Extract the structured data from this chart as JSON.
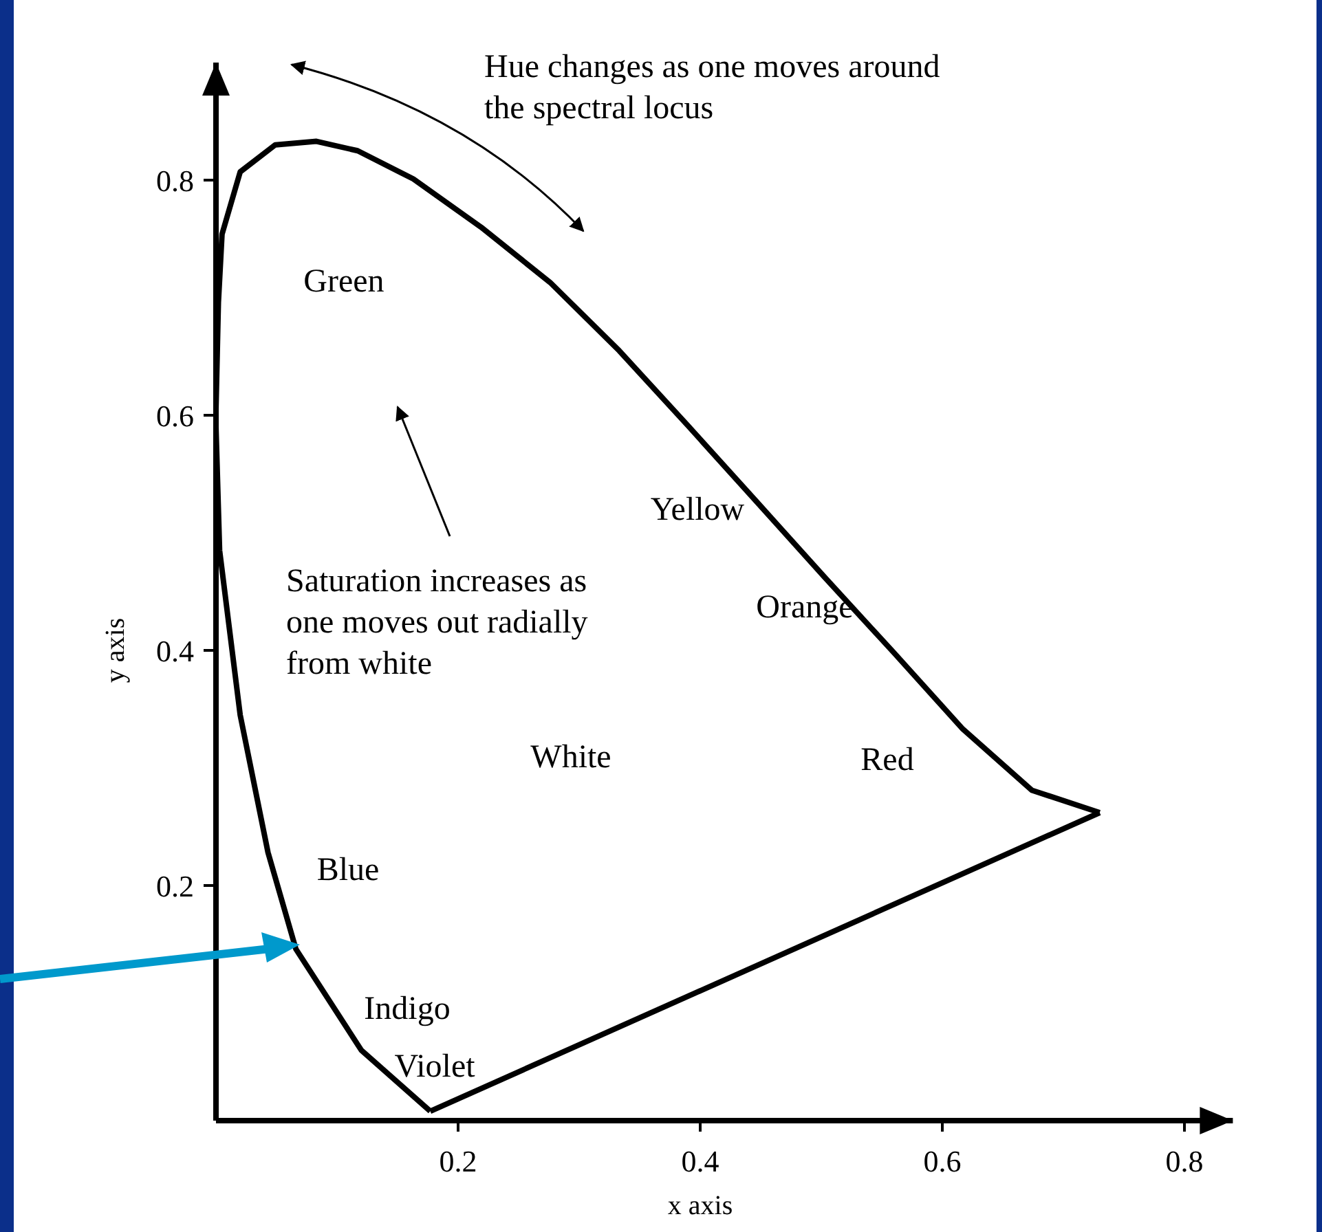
{
  "chart_data": {
    "type": "line",
    "xlabel": "x axis",
    "ylabel": "y axis",
    "xlim": [
      0,
      0.84
    ],
    "ylim": [
      0,
      0.9
    ],
    "xticks": [
      0.2,
      0.4,
      0.6,
      0.8
    ],
    "yticks": [
      0.2,
      0.4,
      0.6,
      0.8
    ],
    "grid": false,
    "legend": false,
    "marker": "none",
    "line_style": "solid",
    "series": [
      {
        "color": "#000000",
        "x": [
          0.177,
          0.12,
          0.066,
          0.043,
          0.02,
          0.003,
          0
        ],
        "values": [
          0.008,
          0.06,
          0.146,
          0.228,
          0.345,
          0.485,
          0.59
        ]
      },
      {
        "color": "#000000",
        "x": [
          0,
          0.002,
          0.005,
          0.02,
          0.049,
          0.083,
          0.117,
          0.163,
          0.219,
          0.276,
          0.333,
          0.39,
          0.447,
          0.503,
          0.56,
          0.617,
          0.674,
          0.73
        ],
        "values": [
          0.605,
          0.696,
          0.754,
          0.807,
          0.83,
          0.833,
          0.825,
          0.801,
          0.76,
          0.713,
          0.655,
          0.591,
          0.526,
          0.462,
          0.398,
          0.333,
          0.281,
          0.262
        ]
      },
      {
        "color": "#000000",
        "x": [
          0.177,
          0.73
        ],
        "values": [
          0.008,
          0.262
        ]
      }
    ],
    "annotations": [
      "Hue changes as one moves around\nthe spectral locus",
      "Saturation increases as\none moves out radially\nfrom white",
      "Green",
      "Yellow",
      "Orange",
      "White",
      "Red",
      "Blue",
      "Indigo",
      "Violet"
    ]
  }
}
